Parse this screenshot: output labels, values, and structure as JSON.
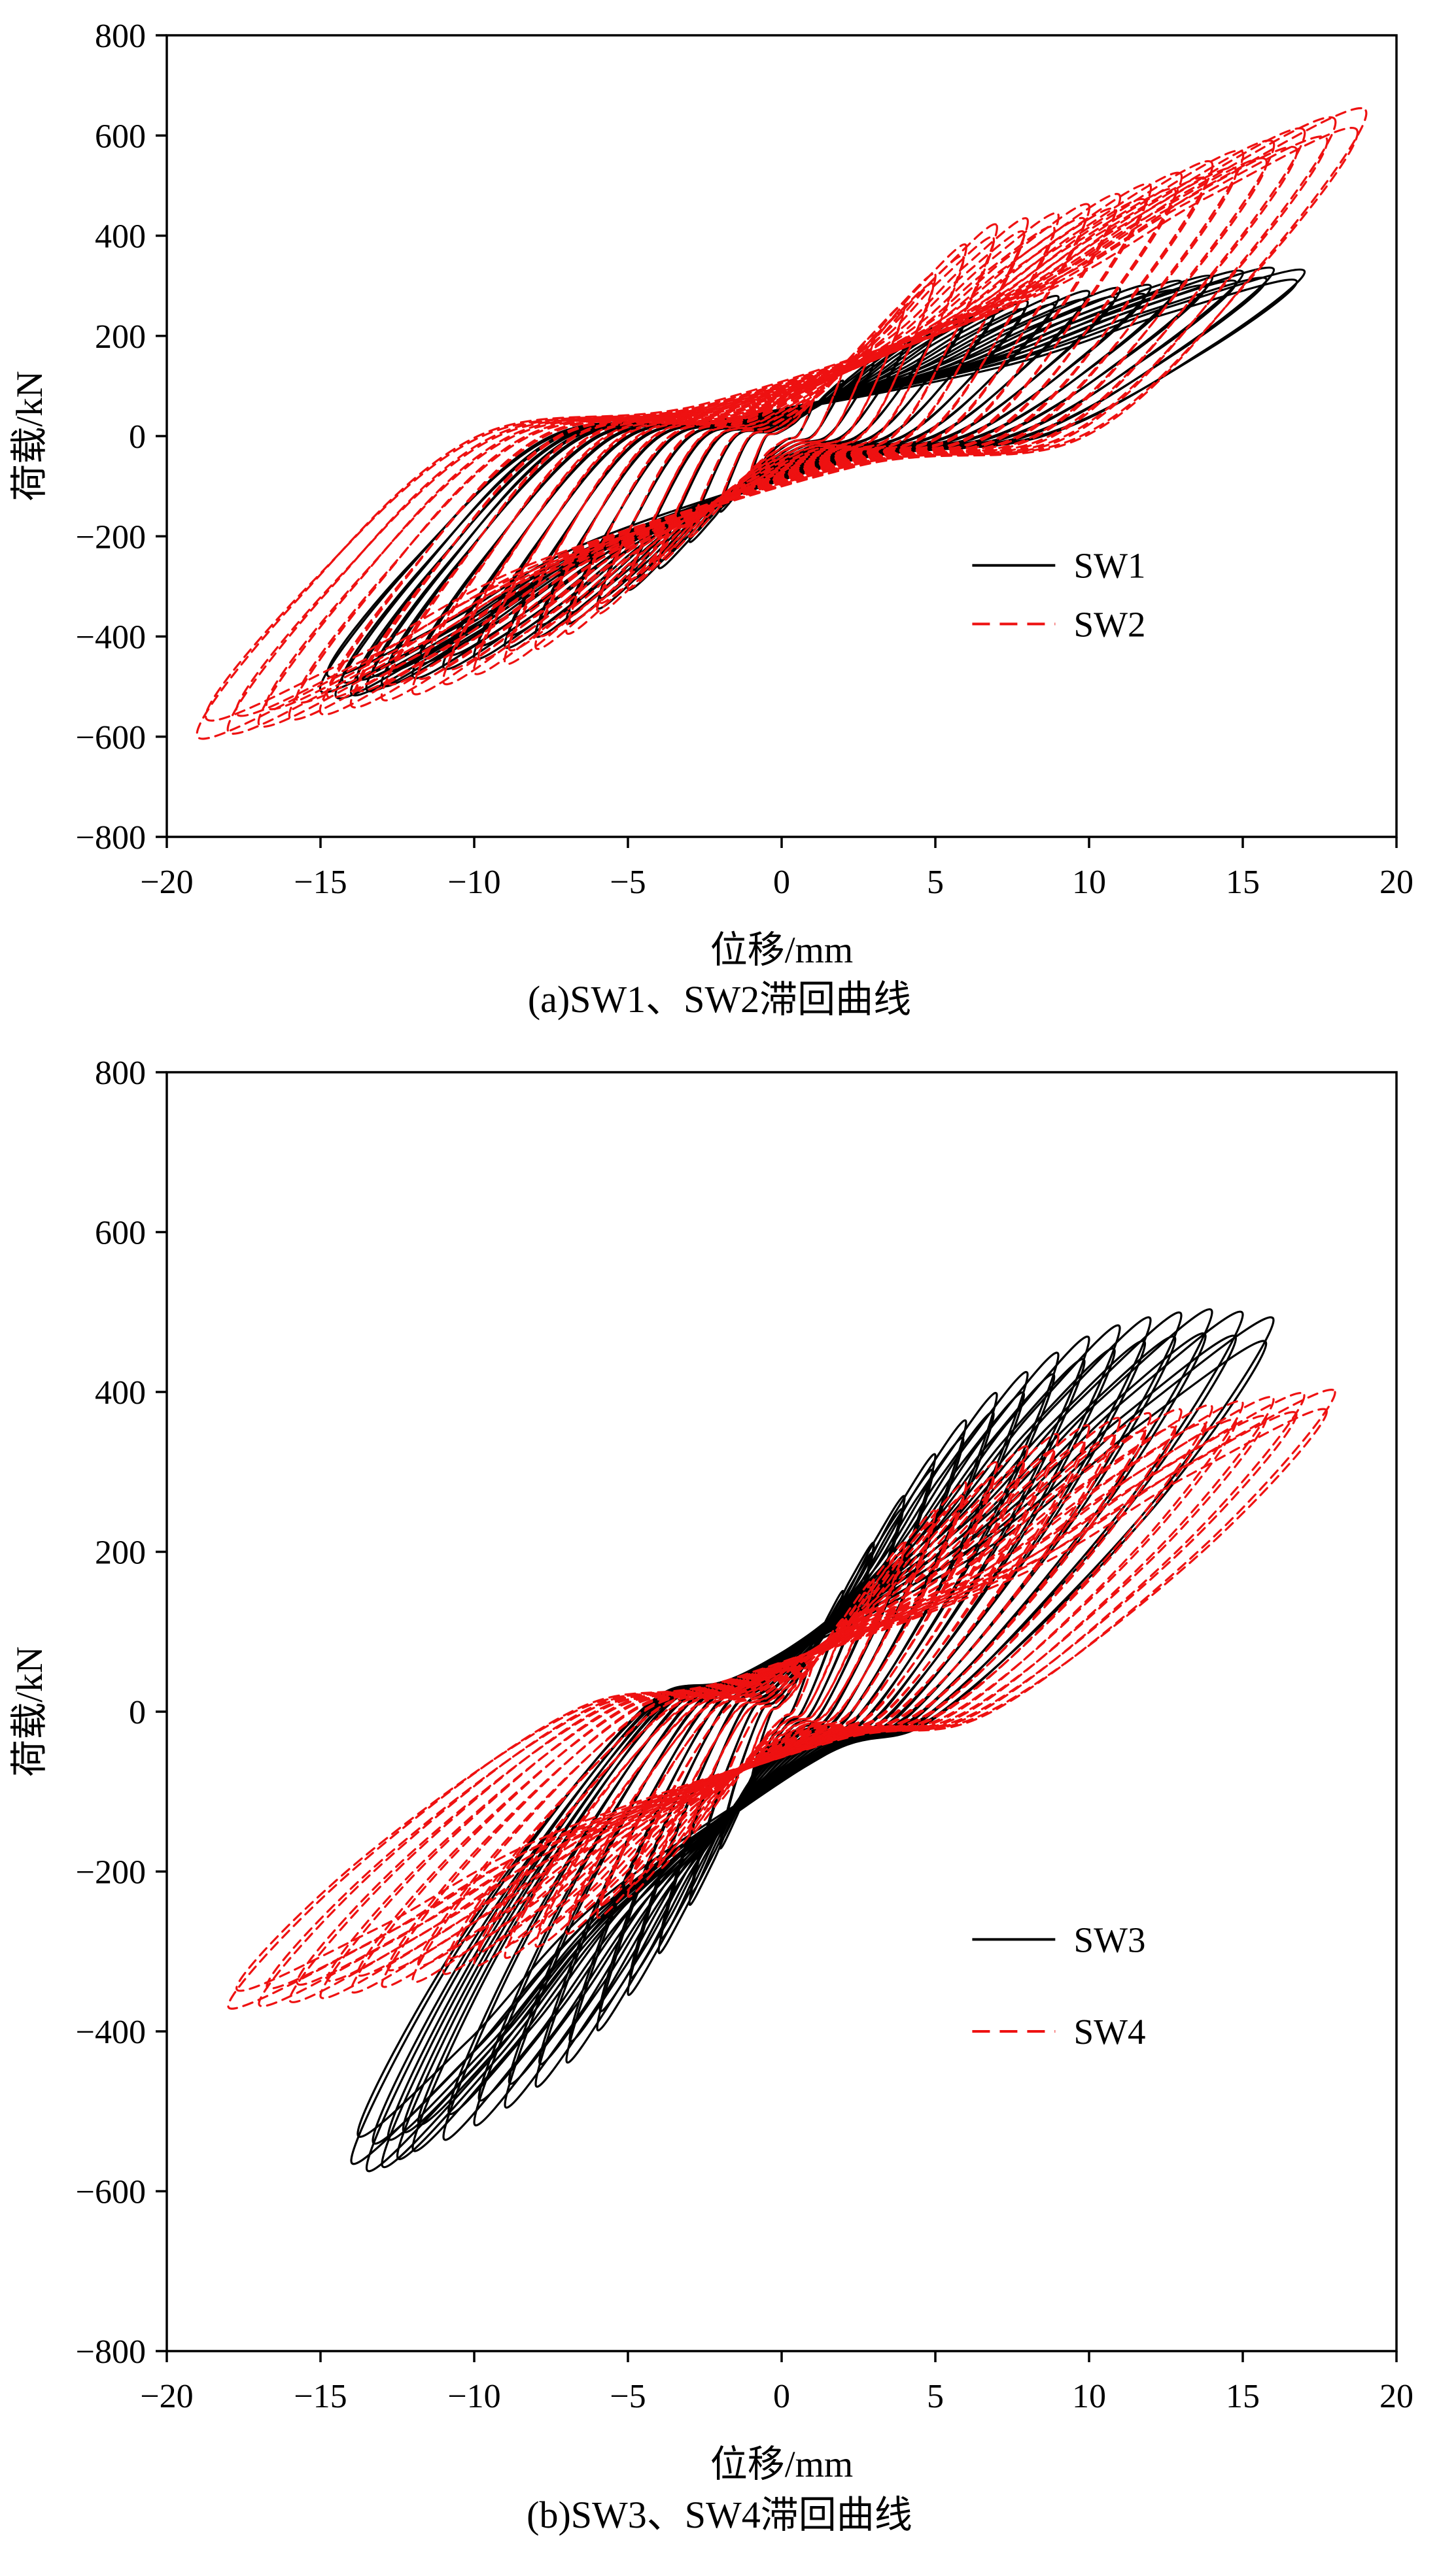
{
  "page": {
    "background": "#ffffff"
  },
  "chart_data": [
    {
      "id": "a",
      "type": "line",
      "subtype": "hysteresis-loops",
      "caption": "(a)SW1、SW2滞回曲线",
      "xlabel": "位移/mm",
      "ylabel": "荷载/kN",
      "xlim": [
        -20,
        20
      ],
      "ylim": [
        -800,
        800
      ],
      "xticks": [
        -20,
        -15,
        -10,
        -5,
        0,
        5,
        10,
        15,
        20
      ],
      "yticks": [
        -800,
        -600,
        -400,
        -200,
        0,
        200,
        400,
        600,
        800
      ],
      "grid": false,
      "legend_pos": {
        "x_line_start": 6.2,
        "x_line_end": 8.9,
        "x_text": 9.5,
        "y_items": [
          -258,
          -375
        ]
      },
      "legend": [
        {
          "label": "SW1",
          "color": "#000000",
          "style": "solid"
        },
        {
          "label": "SW2",
          "color": "#ee1111",
          "style": "dashed"
        }
      ],
      "series": [
        {
          "name": "SW1",
          "color": "#000000",
          "style": "solid",
          "shape": {
            "res": 0.5
          },
          "cycles": [
            [
              1,
              62,
              -1,
              -85
            ],
            [
              2,
              110,
              -2,
              -150
            ],
            [
              3,
              150,
              -3,
              -210
            ],
            [
              4,
              185,
              -4,
              -262
            ],
            [
              5,
              215,
              -5,
              -305
            ],
            [
              6,
              238,
              -6,
              -342
            ],
            [
              7,
              258,
              -7,
              -372
            ],
            [
              8,
              268,
              -8,
              -398
            ],
            [
              9,
              278,
              -9,
              -420
            ],
            [
              10,
              288,
              -10,
              -442
            ],
            [
              11,
              294,
              -11,
              -462
            ],
            [
              12,
              300,
              -12,
              -480
            ],
            [
              13,
              308,
              -13,
              -496
            ],
            [
              14,
              318,
              -13.5,
              -506
            ],
            [
              15,
              328,
              -14,
              -514
            ],
            [
              16,
              334,
              -14.5,
              -520
            ],
            [
              17,
              330,
              -15,
              -508
            ]
          ]
        },
        {
          "name": "SW2",
          "color": "#ee1111",
          "style": "dashed",
          "shape": {
            "res": 0.52
          },
          "cycles": [
            [
              1,
              70,
              -1,
              -72
            ],
            [
              2,
              140,
              -2,
              -140
            ],
            [
              3,
              200,
              -3,
              -200
            ],
            [
              4,
              262,
              -4,
              -252
            ],
            [
              5,
              322,
              -5,
              -302
            ],
            [
              6,
              380,
              -6,
              -352
            ],
            [
              7,
              420,
              -7,
              -392
            ],
            [
              8,
              432,
              -8,
              -422
            ],
            [
              9,
              442,
              -9,
              -452
            ],
            [
              10,
              460,
              -10,
              -472
            ],
            [
              11,
              480,
              -11,
              -492
            ],
            [
              12,
              500,
              -12,
              -512
            ],
            [
              13,
              522,
              -13,
              -524
            ],
            [
              14,
              545,
              -14,
              -538
            ],
            [
              15,
              566,
              -15,
              -552
            ],
            [
              16,
              586,
              -16,
              -562
            ],
            [
              17,
              610,
              -17,
              -576
            ],
            [
              18,
              632,
              -18,
              -590
            ],
            [
              19,
              650,
              -19,
              -600
            ]
          ]
        }
      ]
    },
    {
      "id": "b",
      "type": "line",
      "subtype": "hysteresis-loops",
      "caption": "(b)SW3、SW4滞回曲线",
      "xlabel": "位移/mm",
      "ylabel": "荷载/kN",
      "xlim": [
        -20,
        20
      ],
      "ylim": [
        -800,
        800
      ],
      "xticks": [
        -20,
        -15,
        -10,
        -5,
        0,
        5,
        10,
        15,
        20
      ],
      "yticks": [
        -800,
        -600,
        -400,
        -200,
        0,
        200,
        400,
        600,
        800
      ],
      "grid": false,
      "legend_pos": {
        "x_line_start": 6.2,
        "x_line_end": 8.9,
        "x_text": 9.5,
        "y_items": [
          -285,
          -400
        ]
      },
      "legend": [
        {
          "label": "SW3",
          "color": "#000000",
          "style": "solid"
        },
        {
          "label": "SW4",
          "color": "#ee1111",
          "style": "dashed"
        }
      ],
      "series": [
        {
          "name": "SW3",
          "color": "#000000",
          "style": "solid",
          "shape": {
            "res": 0.33
          },
          "cycles": [
            [
              1,
              80,
              -1,
              -92
            ],
            [
              2,
              150,
              -2,
              -170
            ],
            [
              3,
              210,
              -3,
              -240
            ],
            [
              4,
              268,
              -4,
              -300
            ],
            [
              5,
              320,
              -5,
              -352
            ],
            [
              6,
              362,
              -6,
              -396
            ],
            [
              7,
              396,
              -7,
              -436
            ],
            [
              8,
              422,
              -8,
              -466
            ],
            [
              9,
              446,
              -9,
              -492
            ],
            [
              10,
              466,
              -10,
              -514
            ],
            [
              11,
              480,
              -11,
              -532
            ],
            [
              12,
              490,
              -12,
              -546
            ],
            [
              13,
              496,
              -12.5,
              -556
            ],
            [
              14,
              500,
              -13,
              -566
            ],
            [
              15,
              497,
              -13.5,
              -571
            ],
            [
              16,
              490,
              -14,
              -562
            ]
          ]
        },
        {
          "name": "SW4",
          "color": "#ee1111",
          "style": "dashed",
          "shape": {
            "res": 0.38
          },
          "cycles": [
            [
              1,
              60,
              -1,
              -60
            ],
            [
              2,
              115,
              -2,
              -110
            ],
            [
              3,
              165,
              -3,
              -155
            ],
            [
              4,
              210,
              -4,
              -196
            ],
            [
              5,
              250,
              -5,
              -230
            ],
            [
              6,
              285,
              -6,
              -256
            ],
            [
              7,
              310,
              -7,
              -276
            ],
            [
              8,
              330,
              -8,
              -292
            ],
            [
              9,
              345,
              -9,
              -306
            ],
            [
              10,
              356,
              -10,
              -316
            ],
            [
              11,
              365,
              -11,
              -326
            ],
            [
              12,
              371,
              -12,
              -336
            ],
            [
              13,
              376,
              -13,
              -342
            ],
            [
              14,
              381,
              -14,
              -349
            ],
            [
              15,
              386,
              -15,
              -356
            ],
            [
              16,
              391,
              -16,
              -361
            ],
            [
              17,
              396,
              -17,
              -366
            ],
            [
              18,
              400,
              -18,
              -369
            ]
          ]
        }
      ]
    }
  ]
}
